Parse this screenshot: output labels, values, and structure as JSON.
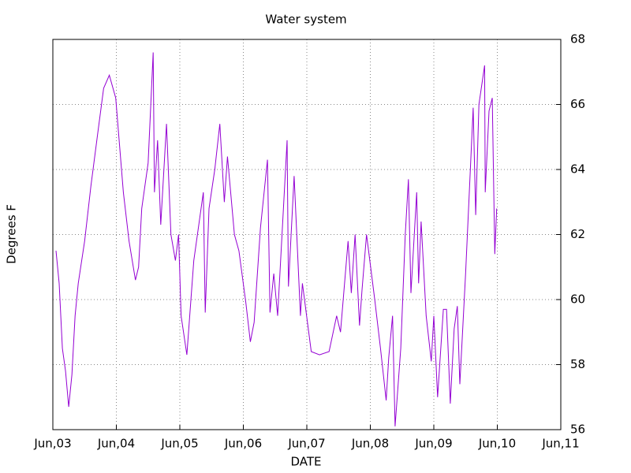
{
  "chart_data": {
    "type": "line",
    "title": "Water system",
    "xlabel": "DATE",
    "ylabel": "Degrees F",
    "x": [
      0.05,
      0.1,
      0.15,
      0.2,
      0.25,
      0.3,
      0.35,
      0.4,
      0.5,
      0.6,
      0.7,
      0.8,
      0.89,
      0.99,
      1.11,
      1.2,
      1.3,
      1.35,
      1.4,
      1.5,
      1.58,
      1.6,
      1.65,
      1.7,
      1.79,
      1.86,
      1.93,
      1.98,
      2.02,
      2.11,
      2.22,
      2.37,
      2.4,
      2.46,
      2.55,
      2.63,
      2.7,
      2.75,
      2.86,
      2.93,
      3.04,
      3.11,
      3.17,
      3.27,
      3.38,
      3.42,
      3.48,
      3.54,
      3.69,
      3.71,
      3.8,
      3.9,
      3.93,
      4.07,
      4.2,
      4.35,
      4.47,
      4.53,
      4.65,
      4.7,
      4.76,
      4.83,
      4.87,
      4.94,
      5.07,
      5.16,
      5.25,
      5.29,
      5.35,
      5.39,
      5.48,
      5.55,
      5.6,
      5.64,
      5.73,
      5.76,
      5.8,
      5.88,
      5.96,
      6.0,
      6.06,
      6.15,
      6.2,
      6.26,
      6.32,
      6.37,
      6.41,
      6.5,
      6.62,
      6.66,
      6.71,
      6.8,
      6.81,
      6.87,
      6.92,
      6.96,
      6.99
    ],
    "series": [
      {
        "name": "Water system",
        "color": "#9400d3",
        "values": [
          61.5,
          60.5,
          58.5,
          57.8,
          56.7,
          57.7,
          59.5,
          60.5,
          61.8,
          63.5,
          65.0,
          66.5,
          66.9,
          66.2,
          63.3,
          61.8,
          60.6,
          61.0,
          62.8,
          64.2,
          67.6,
          63.3,
          64.9,
          62.3,
          65.4,
          62.0,
          61.2,
          62.0,
          59.5,
          58.3,
          61.2,
          63.3,
          59.6,
          62.8,
          64.0,
          65.4,
          63.0,
          64.4,
          62.0,
          61.5,
          59.9,
          58.7,
          59.3,
          62.2,
          64.3,
          59.6,
          60.8,
          59.5,
          64.9,
          60.4,
          63.8,
          59.5,
          60.5,
          58.4,
          58.3,
          58.4,
          59.5,
          59.0,
          61.8,
          60.2,
          62.0,
          59.2,
          60.3,
          62.0,
          60.0,
          58.5,
          56.9,
          58.2,
          59.5,
          56.1,
          58.5,
          62.0,
          63.7,
          60.2,
          63.3,
          60.5,
          62.4,
          59.5,
          58.1,
          59.5,
          57.0,
          59.7,
          59.7,
          56.8,
          59.1,
          59.8,
          57.4,
          60.8,
          65.9,
          62.6,
          66.0,
          67.2,
          63.3,
          65.8,
          66.2,
          61.4,
          62.8
        ]
      }
    ],
    "xlim": [
      0,
      8
    ],
    "xticks": [
      {
        "value": 0,
        "label": "Jun,03"
      },
      {
        "value": 1,
        "label": "Jun,04"
      },
      {
        "value": 2,
        "label": "Jun,05"
      },
      {
        "value": 3,
        "label": "Jun,06"
      },
      {
        "value": 4,
        "label": "Jun,07"
      },
      {
        "value": 5,
        "label": "Jun,08"
      },
      {
        "value": 6,
        "label": "Jun,09"
      },
      {
        "value": 7,
        "label": "Jun,10"
      },
      {
        "value": 8,
        "label": "Jun,11"
      }
    ],
    "ylim": [
      56,
      68
    ],
    "yticks": [
      56,
      58,
      60,
      62,
      64,
      66,
      68
    ],
    "y_axis_side": "right",
    "grid": true
  }
}
